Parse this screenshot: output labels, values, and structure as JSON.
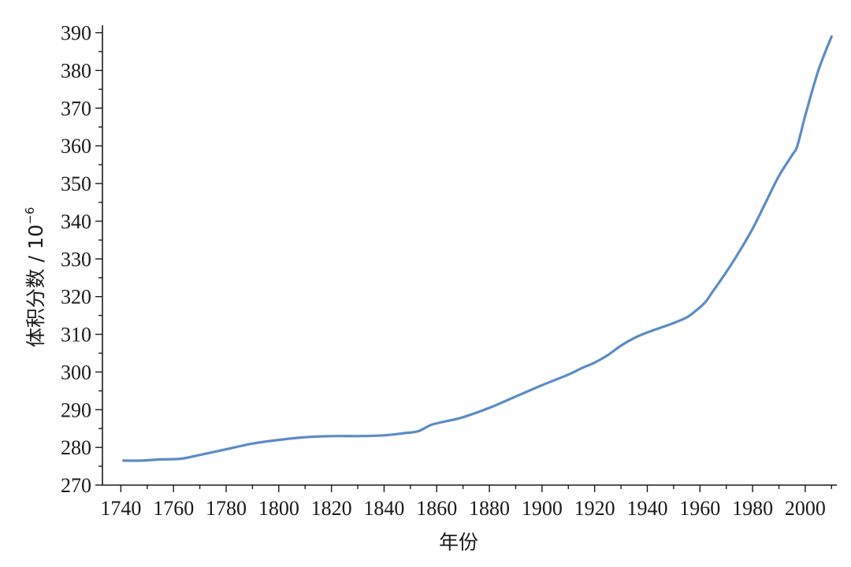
{
  "chart_data": {
    "type": "line",
    "xlabel": "年份",
    "ylabel": "体积分数 / 10",
    "ylabel_superscript": "−6",
    "xlim": [
      1733,
      2012
    ],
    "ylim": [
      270,
      392
    ],
    "x_ticks": [
      1740,
      1760,
      1780,
      1800,
      1820,
      1840,
      1860,
      1880,
      1900,
      1920,
      1940,
      1960,
      1980,
      2000
    ],
    "x_minor_step": 10,
    "y_ticks": [
      270,
      280,
      290,
      300,
      310,
      320,
      330,
      340,
      350,
      360,
      370,
      380,
      390
    ],
    "y_minor_step": 5,
    "grid": false,
    "line_color": "#5b8cc6",
    "series": [
      {
        "x": [
          1741,
          1748,
          1755,
          1763,
          1770,
          1780,
          1790,
          1800,
          1810,
          1820,
          1830,
          1840,
          1848,
          1853,
          1858,
          1864,
          1870,
          1880,
          1890,
          1900,
          1910,
          1915,
          1920,
          1925,
          1930,
          1935,
          1940,
          1950,
          1955,
          1958,
          1962,
          1965,
          1970,
          1975,
          1980,
          1985,
          1990,
          1995,
          1997,
          2000,
          2005,
          2010
        ],
        "y": [
          276.5,
          276.5,
          276.8,
          277.0,
          278.0,
          279.5,
          281.0,
          282.0,
          282.7,
          283.0,
          283.0,
          283.2,
          283.8,
          284.3,
          286.0,
          287.0,
          288.0,
          290.5,
          293.5,
          296.5,
          299.3,
          301.0,
          302.5,
          304.5,
          307.0,
          309.0,
          310.5,
          313.0,
          314.5,
          316.0,
          318.5,
          321.5,
          326.5,
          332.0,
          338.0,
          345.0,
          352.0,
          357.5,
          360.0,
          368.0,
          380.0,
          389.0
        ]
      }
    ]
  }
}
